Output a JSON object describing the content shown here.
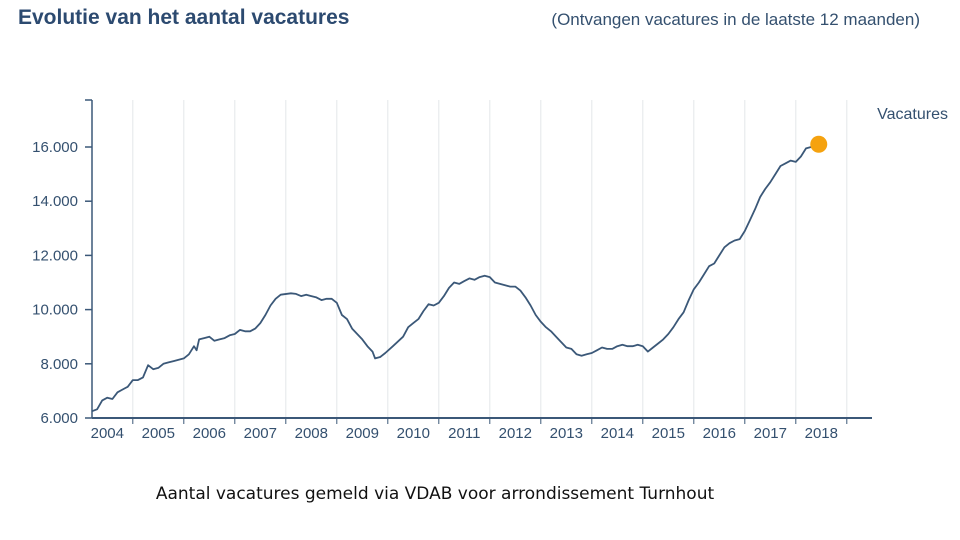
{
  "header": {
    "title": "Evolutie van het aantal vacatures",
    "subtitle": "(Ontvangen vacatures in de laatste 12 maanden)"
  },
  "caption": "Aantal vacatures gemeld via VDAB voor arrondissement Turnhout",
  "colors": {
    "line": "#3b5878",
    "axis": "#3b5878",
    "grid": "#e3e6ea",
    "endpoint": "#f5a20f",
    "text": "#34506f"
  },
  "chart_data": {
    "type": "line",
    "title": "Evolutie van het aantal vacatures",
    "subtitle": "(Ontvangen vacatures in de laatste 12 maanden)",
    "xlabel": "",
    "ylabel": "",
    "ylim": [
      6000,
      17500
    ],
    "yticks": [
      6000,
      8000,
      10000,
      12000,
      14000,
      16000
    ],
    "ytick_labels": [
      "6.000",
      "8.000",
      "10.000",
      "12.000",
      "14.000",
      "16.000"
    ],
    "xlim": [
      2003.6,
      2018.85
    ],
    "categories": [
      "2004",
      "2005",
      "2006",
      "2007",
      "2008",
      "2009",
      "2010",
      "2011",
      "2012",
      "2013",
      "2014",
      "2015",
      "2016",
      "2017",
      "2018"
    ],
    "grid": true,
    "legend": "none",
    "series": [
      {
        "name": "Vacatures",
        "points": [
          [
            2003.6,
            6250
          ],
          [
            2003.7,
            6320
          ],
          [
            2003.8,
            6650
          ],
          [
            2003.9,
            6750
          ],
          [
            2004.0,
            6700
          ],
          [
            2004.1,
            6950
          ],
          [
            2004.2,
            7050
          ],
          [
            2004.3,
            7150
          ],
          [
            2004.4,
            7400
          ],
          [
            2004.5,
            7400
          ],
          [
            2004.6,
            7500
          ],
          [
            2004.7,
            7950
          ],
          [
            2004.8,
            7800
          ],
          [
            2004.9,
            7850
          ],
          [
            2005.0,
            8000
          ],
          [
            2005.1,
            8050
          ],
          [
            2005.2,
            8100
          ],
          [
            2005.3,
            8150
          ],
          [
            2005.4,
            8200
          ],
          [
            2005.5,
            8350
          ],
          [
            2005.6,
            8650
          ],
          [
            2005.65,
            8500
          ],
          [
            2005.7,
            8900
          ],
          [
            2005.8,
            8950
          ],
          [
            2005.9,
            9000
          ],
          [
            2006.0,
            8850
          ],
          [
            2006.1,
            8900
          ],
          [
            2006.2,
            8950
          ],
          [
            2006.3,
            9050
          ],
          [
            2006.4,
            9100
          ],
          [
            2006.5,
            9250
          ],
          [
            2006.6,
            9200
          ],
          [
            2006.7,
            9200
          ],
          [
            2006.8,
            9300
          ],
          [
            2006.9,
            9500
          ],
          [
            2007.0,
            9800
          ],
          [
            2007.1,
            10150
          ],
          [
            2007.2,
            10400
          ],
          [
            2007.3,
            10550
          ],
          [
            2007.5,
            10600
          ],
          [
            2007.6,
            10580
          ],
          [
            2007.7,
            10500
          ],
          [
            2007.8,
            10550
          ],
          [
            2007.9,
            10500
          ],
          [
            2008.0,
            10450
          ],
          [
            2008.1,
            10350
          ],
          [
            2008.2,
            10400
          ],
          [
            2008.3,
            10400
          ],
          [
            2008.4,
            10250
          ],
          [
            2008.5,
            9800
          ],
          [
            2008.6,
            9650
          ],
          [
            2008.7,
            9300
          ],
          [
            2008.8,
            9100
          ],
          [
            2008.9,
            8900
          ],
          [
            2009.0,
            8650
          ],
          [
            2009.1,
            8450
          ],
          [
            2009.15,
            8200
          ],
          [
            2009.25,
            8250
          ],
          [
            2009.35,
            8400
          ],
          [
            2009.5,
            8650
          ],
          [
            2009.7,
            9000
          ],
          [
            2009.8,
            9350
          ],
          [
            2009.9,
            9500
          ],
          [
            2010.0,
            9650
          ],
          [
            2010.1,
            9950
          ],
          [
            2010.2,
            10200
          ],
          [
            2010.3,
            10150
          ],
          [
            2010.4,
            10250
          ],
          [
            2010.5,
            10500
          ],
          [
            2010.6,
            10800
          ],
          [
            2010.7,
            11000
          ],
          [
            2010.8,
            10950
          ],
          [
            2010.9,
            11050
          ],
          [
            2011.0,
            11150
          ],
          [
            2011.1,
            11100
          ],
          [
            2011.2,
            11200
          ],
          [
            2011.3,
            11250
          ],
          [
            2011.4,
            11200
          ],
          [
            2011.5,
            11000
          ],
          [
            2011.6,
            10950
          ],
          [
            2011.7,
            10900
          ],
          [
            2011.8,
            10850
          ],
          [
            2011.9,
            10850
          ],
          [
            2012.0,
            10700
          ],
          [
            2012.1,
            10450
          ],
          [
            2012.2,
            10150
          ],
          [
            2012.3,
            9800
          ],
          [
            2012.4,
            9550
          ],
          [
            2012.5,
            9350
          ],
          [
            2012.6,
            9200
          ],
          [
            2012.7,
            9000
          ],
          [
            2012.8,
            8800
          ],
          [
            2012.9,
            8600
          ],
          [
            2013.0,
            8550
          ],
          [
            2013.1,
            8350
          ],
          [
            2013.2,
            8300
          ],
          [
            2013.3,
            8350
          ],
          [
            2013.4,
            8400
          ],
          [
            2013.5,
            8500
          ],
          [
            2013.6,
            8600
          ],
          [
            2013.7,
            8550
          ],
          [
            2013.8,
            8550
          ],
          [
            2013.9,
            8650
          ],
          [
            2014.0,
            8700
          ],
          [
            2014.1,
            8650
          ],
          [
            2014.2,
            8650
          ],
          [
            2014.3,
            8700
          ],
          [
            2014.4,
            8650
          ],
          [
            2014.5,
            8450
          ],
          [
            2014.6,
            8600
          ],
          [
            2014.7,
            8750
          ],
          [
            2014.8,
            8900
          ],
          [
            2014.9,
            9100
          ],
          [
            2015.0,
            9350
          ],
          [
            2015.1,
            9650
          ],
          [
            2015.2,
            9900
          ],
          [
            2015.3,
            10350
          ],
          [
            2015.4,
            10750
          ],
          [
            2015.5,
            11000
          ],
          [
            2015.6,
            11300
          ],
          [
            2015.7,
            11600
          ],
          [
            2015.8,
            11700
          ],
          [
            2015.9,
            12000
          ],
          [
            2016.0,
            12300
          ],
          [
            2016.1,
            12450
          ],
          [
            2016.2,
            12550
          ],
          [
            2016.3,
            12600
          ],
          [
            2016.4,
            12900
          ],
          [
            2016.5,
            13300
          ],
          [
            2016.6,
            13700
          ],
          [
            2016.7,
            14150
          ],
          [
            2016.8,
            14450
          ],
          [
            2016.9,
            14700
          ],
          [
            2017.0,
            15000
          ],
          [
            2017.1,
            15300
          ],
          [
            2017.2,
            15400
          ],
          [
            2017.3,
            15500
          ],
          [
            2017.4,
            15450
          ],
          [
            2017.5,
            15650
          ],
          [
            2017.6,
            15950
          ],
          [
            2017.7,
            16000
          ],
          [
            2017.75,
            16000
          ]
        ],
        "endpoint": [
          2017.85,
          16100
        ]
      }
    ]
  }
}
